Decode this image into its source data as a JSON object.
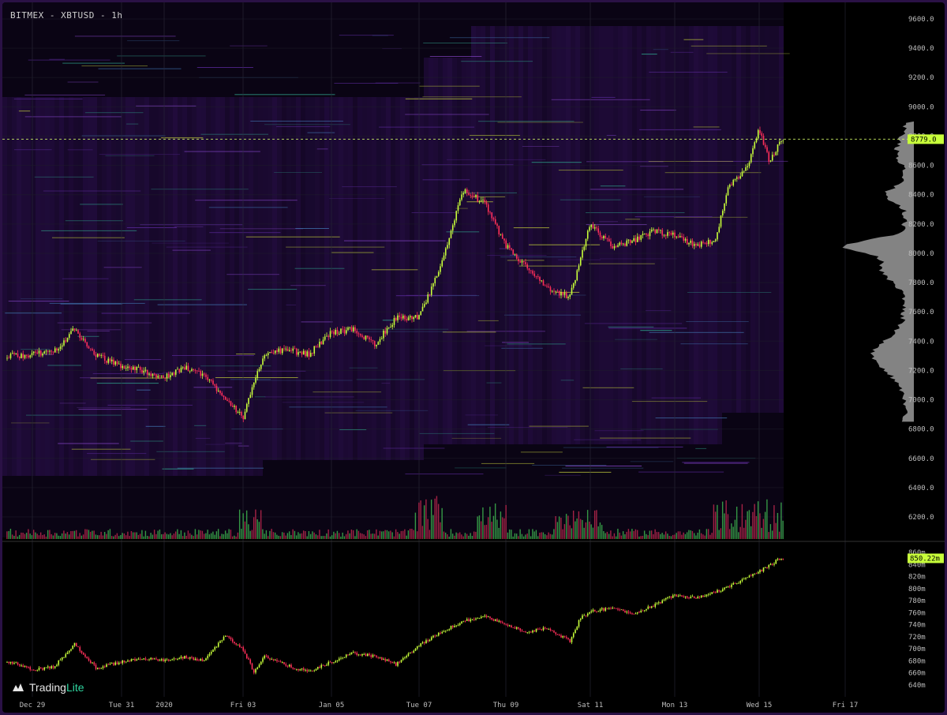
{
  "header": {
    "title": "BITMEX - XBTUSD - 1h"
  },
  "branding": {
    "logo_trading": "Trading",
    "logo_lite": "Lite"
  },
  "colors": {
    "background": "#000000",
    "frame": "#2a1145",
    "heatmap_base": "#2b0f4d",
    "candle_up": "#c8ff3a",
    "candle_down": "#ff2f5a",
    "price_label_bg": "#c8ff3a",
    "profile": "#9a9a9a"
  },
  "price_axis": {
    "ticks": [
      "9600.0",
      "9400.0",
      "9200.0",
      "9000.0",
      "8800.0",
      "8600.0",
      "8400.0",
      "8200.0",
      "8000.0",
      "7800.0",
      "7600.0",
      "7400.0",
      "7200.0",
      "7000.0",
      "6800.0",
      "6600.0",
      "6400.0",
      "6200.0"
    ],
    "current_price": "8779.0"
  },
  "delta_axis": {
    "ticks": [
      "860m",
      "840m",
      "820m",
      "800m",
      "780m",
      "760m",
      "740m",
      "720m",
      "700m",
      "680m",
      "660m",
      "640m"
    ],
    "current_value": "850.22m"
  },
  "time_axis": {
    "labels": [
      "Dec 29",
      "Tue 31",
      "2020",
      "Fri 03",
      "Jan 05",
      "Tue 07",
      "Thu 09",
      "Sat 11",
      "Mon 13",
      "Wed 15",
      "Fri 17"
    ]
  },
  "chart_data": [
    {
      "type": "candlestick",
      "title": "BITMEX - XBTUSD - 1h",
      "x": [
        "Dec 29",
        "Tue 31",
        "2020",
        "Fri 03",
        "Jan 05",
        "Tue 07",
        "Thu 09",
        "Sat 11",
        "Mon 13",
        "Wed 15",
        "Fri 17"
      ],
      "ylim": [
        6100,
        9700
      ],
      "close_path": [
        [
          "Dec 28 12h",
          7300
        ],
        [
          "Dec 29",
          7310
        ],
        [
          "Dec 29 12h",
          7330
        ],
        [
          "Dec 30 00h",
          7480
        ],
        [
          "Dec 30 12h",
          7300
        ],
        [
          "Dec 31",
          7230
        ],
        [
          "Dec 31 12h",
          7200
        ],
        [
          "2020",
          7150
        ],
        [
          "Jan 01 12h",
          7220
        ],
        [
          "Jan 02",
          7170
        ],
        [
          "Jan 02 12h",
          7020
        ],
        [
          "Fri 03",
          6880
        ],
        [
          "Jan 03 12h",
          7320
        ],
        [
          "Jan 04",
          7340
        ],
        [
          "Jan 04 12h",
          7310
        ],
        [
          "Jan 05",
          7460
        ],
        [
          "Jan 05 12h",
          7480
        ],
        [
          "Jan 06",
          7380
        ],
        [
          "Jan 06 12h",
          7560
        ],
        [
          "Tue 07",
          7560
        ],
        [
          "Jan 07 12h",
          7900
        ],
        [
          "Jan 08",
          8430
        ],
        [
          "Jan 08 12h",
          8350
        ],
        [
          "Thu 09",
          8050
        ],
        [
          "Jan 09 12h",
          7900
        ],
        [
          "Jan 10",
          7750
        ],
        [
          "Jan 10 12h",
          7700
        ],
        [
          "Sat 11",
          8200
        ],
        [
          "Jan 11 12h",
          8050
        ],
        [
          "Jan 12",
          8080
        ],
        [
          "Jan 12 12h",
          8150
        ],
        [
          "Mon 13",
          8120
        ],
        [
          "Jan 13 12h",
          8050
        ],
        [
          "Jan 14",
          8100
        ],
        [
          "Jan 14 06h",
          8450
        ],
        [
          "Jan 14 18h",
          8600
        ],
        [
          "Wed 15",
          8850
        ],
        [
          "Jan 15 06h",
          8620
        ],
        [
          "Jan 15 12h",
          8779
        ]
      ],
      "current_price": 8779.0,
      "series": [
        {
          "name": "Volume"
        },
        {
          "name": "Volume profile"
        },
        {
          "name": "Order book heatmap"
        }
      ]
    },
    {
      "type": "candlestick",
      "x": [
        "Dec 29",
        "Tue 31",
        "2020",
        "Fri 03",
        "Jan 05",
        "Tue 07",
        "Thu 09",
        "Sat 11",
        "Mon 13",
        "Wed 15",
        "Fri 17"
      ],
      "ylim": [
        630,
        862
      ],
      "unit": "m",
      "close_path": [
        [
          "Dec 28 12h",
          678
        ],
        [
          "Dec 29",
          665
        ],
        [
          "Dec 29 12h",
          670
        ],
        [
          "Dec 30 00h",
          708
        ],
        [
          "Dec 30 12h",
          668
        ],
        [
          "Dec 31",
          678
        ],
        [
          "Dec 31 12h",
          685
        ],
        [
          "2020",
          680
        ],
        [
          "Jan 01 12h",
          686
        ],
        [
          "Jan 02",
          680
        ],
        [
          "Jan 02 12h",
          722
        ],
        [
          "Fri 03",
          700
        ],
        [
          "Jan 03 06h",
          662
        ],
        [
          "Jan 03 12h",
          688
        ],
        [
          "Jan 04",
          672
        ],
        [
          "Jan 04 12h",
          662
        ],
        [
          "Jan 05",
          678
        ],
        [
          "Jan 05 12h",
          693
        ],
        [
          "Jan 06",
          688
        ],
        [
          "Jan 06 12h",
          674
        ],
        [
          "Tue 07",
          705
        ],
        [
          "Jan 07 12h",
          728
        ],
        [
          "Jan 08",
          745
        ],
        [
          "Jan 08 12h",
          755
        ],
        [
          "Thu 09",
          740
        ],
        [
          "Jan 09 12h",
          728
        ],
        [
          "Jan 10",
          735
        ],
        [
          "Jan 10 12h",
          712
        ],
        [
          "Jan 10 18h",
          752
        ],
        [
          "Sat 11",
          762
        ],
        [
          "Jan 11 12h",
          768
        ],
        [
          "Jan 12",
          758
        ],
        [
          "Jan 12 12h",
          772
        ],
        [
          "Mon 13",
          790
        ],
        [
          "Jan 13 12h",
          785
        ],
        [
          "Jan 14",
          795
        ],
        [
          "Jan 14 12h",
          810
        ],
        [
          "Wed 15",
          828
        ],
        [
          "Jan 15 12h",
          850.22
        ]
      ],
      "current_value": 850.22
    }
  ]
}
